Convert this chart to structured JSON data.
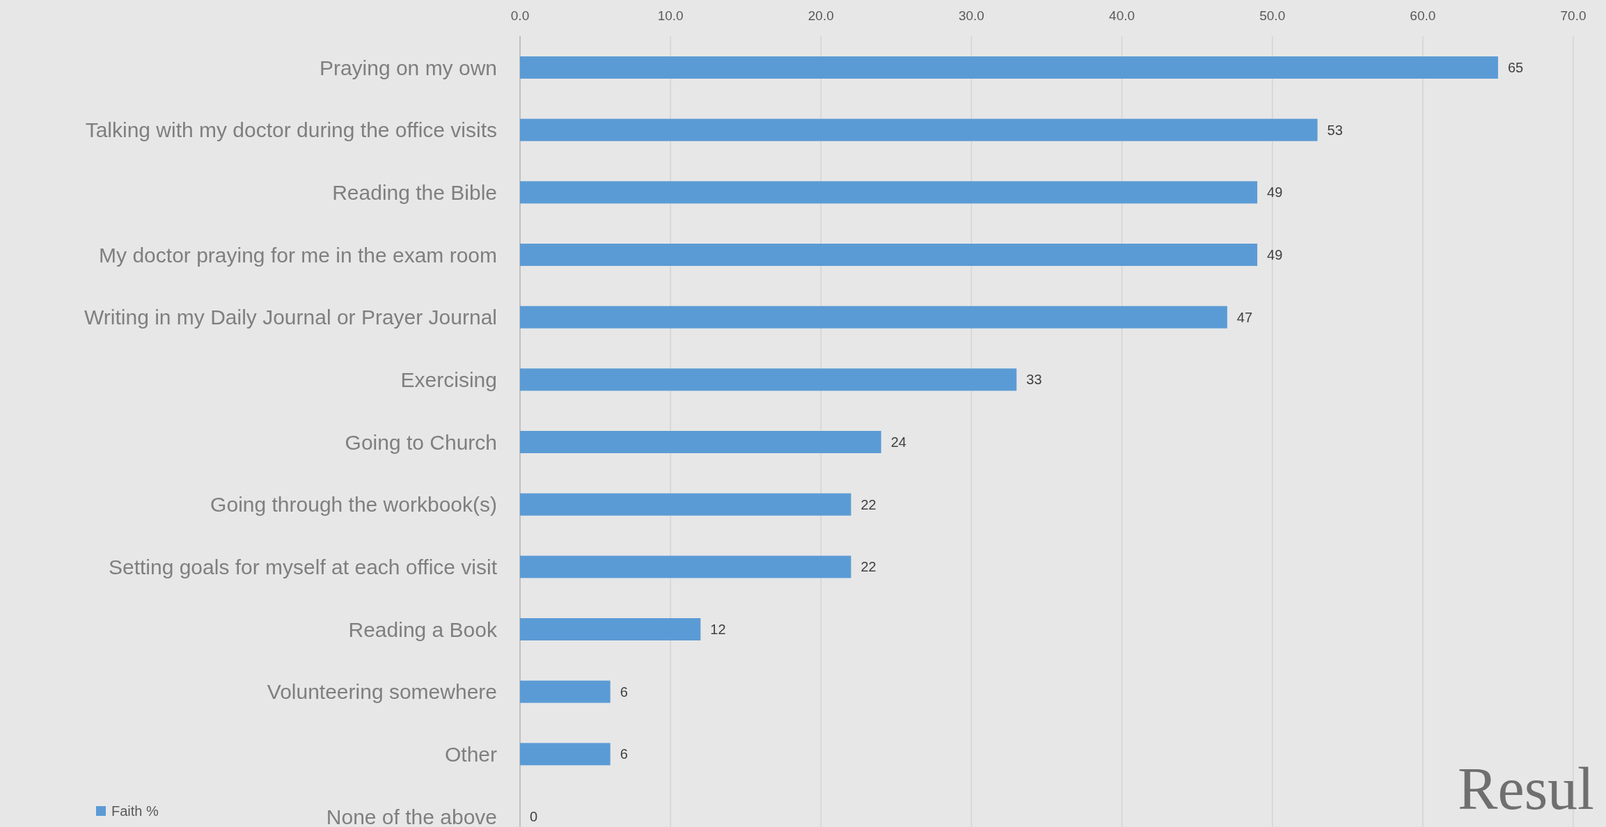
{
  "chart_data": {
    "type": "bar",
    "orientation": "horizontal",
    "categories": [
      "Praying on my own",
      "Talking with my doctor during the office visits",
      "Reading the Bible",
      "My doctor praying for me in the exam room",
      "Writing in my Daily Journal or Prayer Journal",
      "Exercising",
      "Going to Church",
      "Going through the workbook(s)",
      "Setting goals for myself at each office visit",
      "Reading a Book",
      "Volunteering somewhere",
      "Other",
      "None of the above"
    ],
    "series": [
      {
        "name": "Faith %",
        "color": "#5b9bd5",
        "values": [
          65,
          53,
          49,
          49,
          47,
          33,
          24,
          22,
          22,
          12,
          6,
          6,
          0
        ]
      }
    ],
    "xlim": [
      0,
      70
    ],
    "xticks": [
      {
        "value": 0,
        "label": "0.0"
      },
      {
        "value": 10,
        "label": "10.0"
      },
      {
        "value": 20,
        "label": "20.0"
      },
      {
        "value": 30,
        "label": "30.0"
      },
      {
        "value": 40,
        "label": "40.0"
      },
      {
        "value": 50,
        "label": "50.0"
      },
      {
        "value": 60,
        "label": "60.0"
      },
      {
        "value": 70,
        "label": "70.0"
      }
    ],
    "grid": "x",
    "data_labels": true,
    "legend": "bottom left",
    "annotations": [
      "Resul"
    ]
  }
}
